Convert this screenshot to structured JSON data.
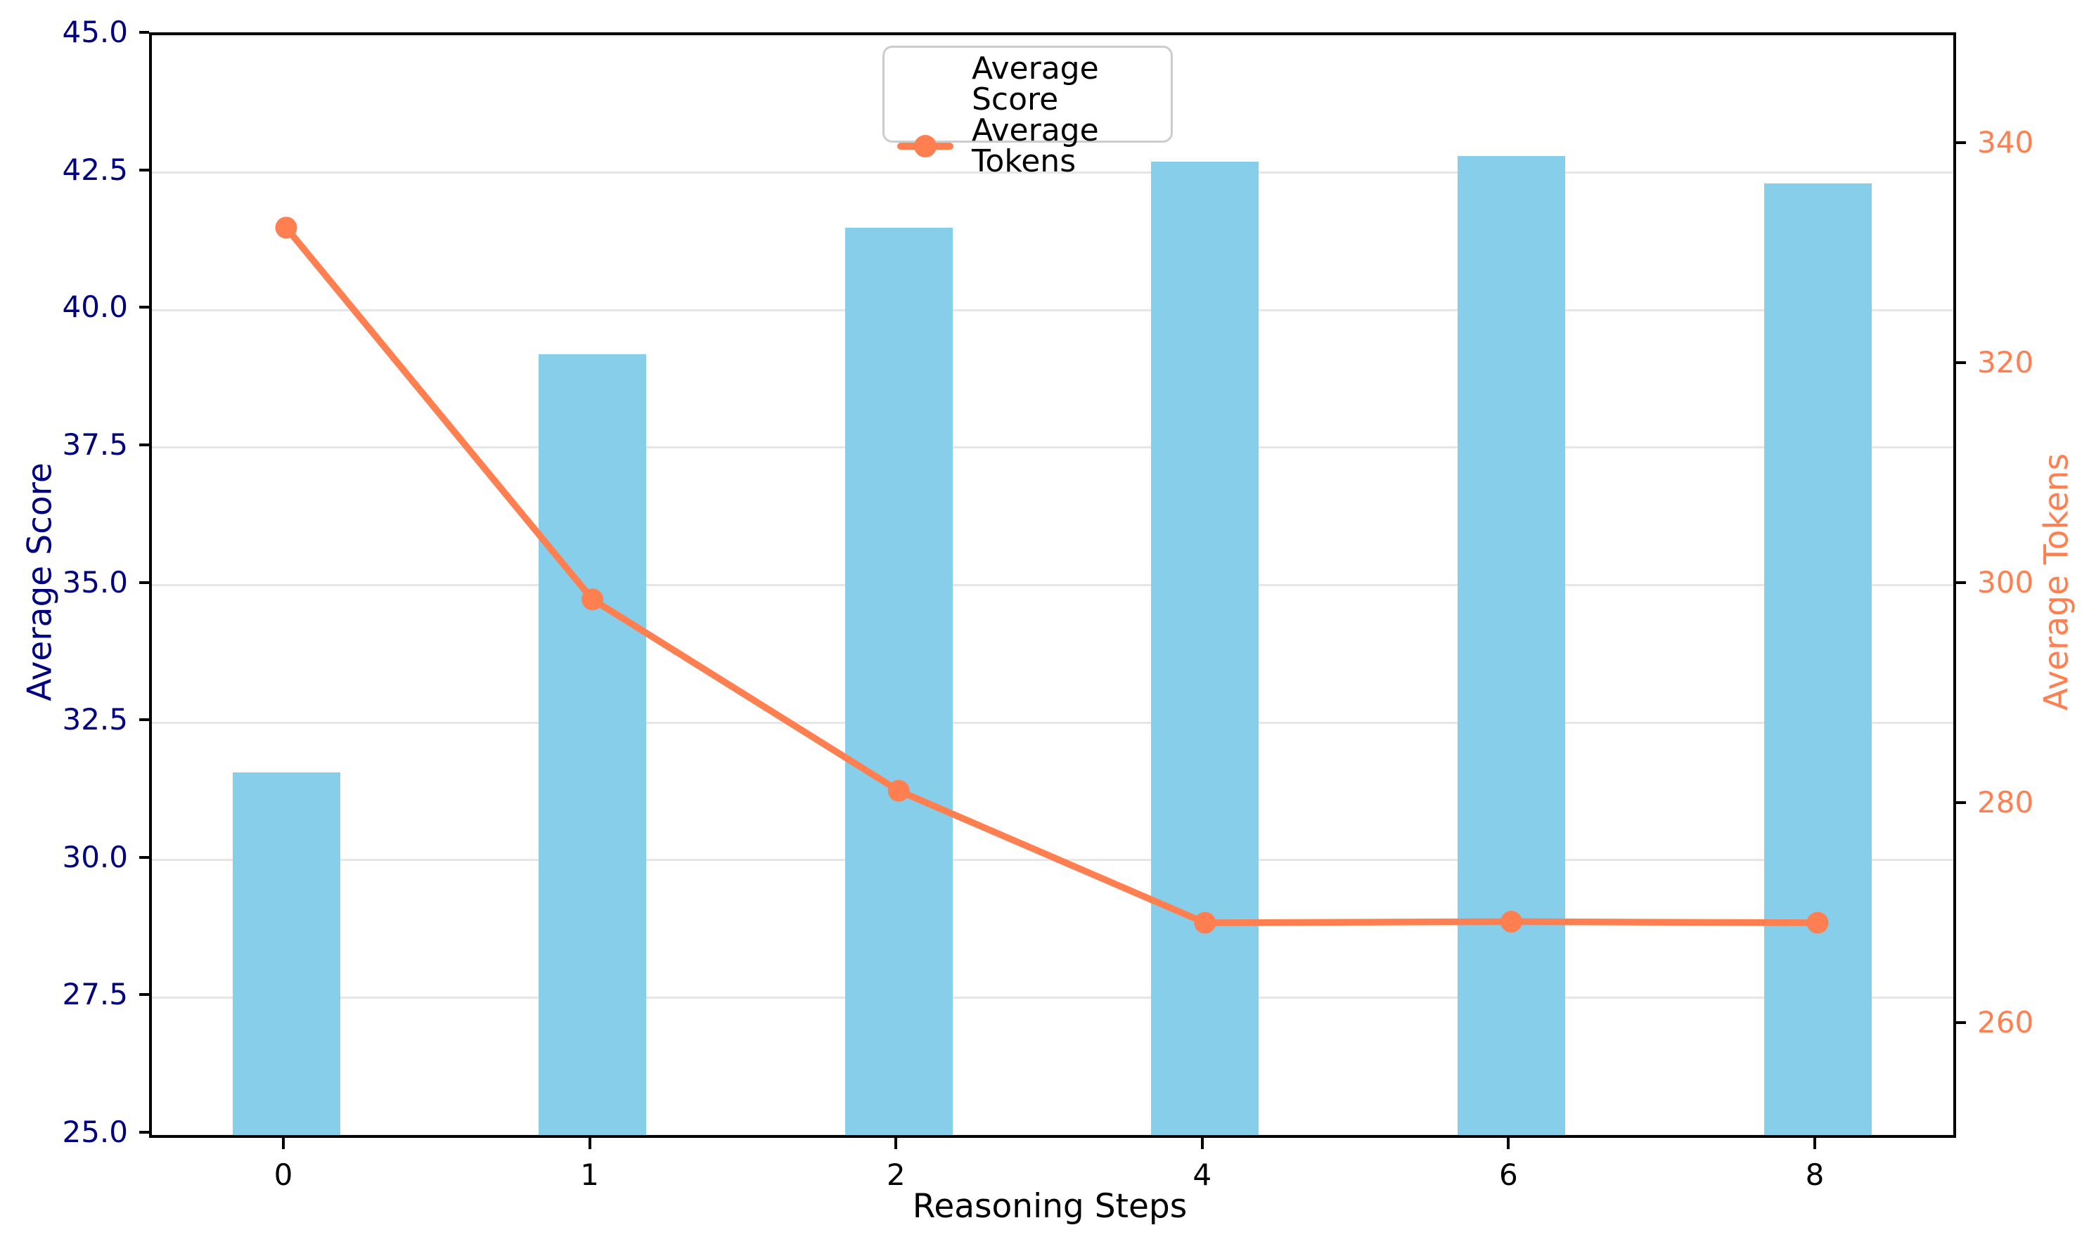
{
  "chart_data": {
    "type": "bar",
    "subtype": "dual-axis bar+line combo",
    "categories": [
      "0",
      "1",
      "2",
      "4",
      "6",
      "8"
    ],
    "series": [
      {
        "name": "Average Score",
        "kind": "bar",
        "axis": "left",
        "color": "#87CEEB",
        "values": [
          31.6,
          39.2,
          41.5,
          42.7,
          42.8,
          42.3
        ]
      },
      {
        "name": "Average Tokens",
        "kind": "line",
        "axis": "right",
        "color": "#FF7F50",
        "values": [
          332.5,
          298.7,
          281.3,
          269.3,
          269.4,
          269.3
        ]
      }
    ],
    "xlabel": "Reasoning Steps",
    "ylabel_left": "Average Score",
    "ylabel_right": "Average Tokens",
    "ylim_left": [
      25.0,
      45.0
    ],
    "ylim_right": [
      250,
      350
    ],
    "yticks_left": [
      "25.0",
      "27.5",
      "30.0",
      "32.5",
      "35.0",
      "37.5",
      "40.0",
      "42.5",
      "45.0"
    ],
    "yticks_right": [
      "260",
      "280",
      "300",
      "320",
      "340"
    ],
    "grid": "horizontal",
    "legend_position": "upper center",
    "colors": {
      "bar": "#87CEEB",
      "line": "#FF7F50",
      "left_axis_text": "#000080",
      "right_axis_text": "#FF7F50",
      "x_axis_text": "#000000",
      "gridline": "#e6e6e6",
      "spine": "#000000",
      "legend_border": "#cccccc"
    }
  }
}
